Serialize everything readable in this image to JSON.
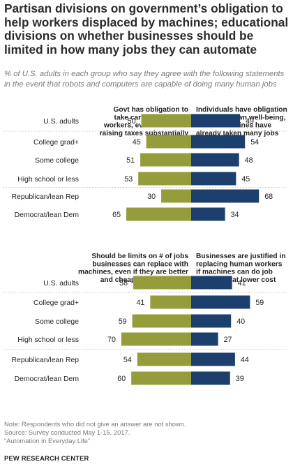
{
  "title": "Partisan divisions on government’s obligation to help workers displaced by machines; educational divisions on whether businesses should be limited in how many jobs they can automate",
  "subtitle": "% of U.S. adults in each group who say they agree with the following statements in the event that robots and computers are capable of doing many human jobs",
  "colors": {
    "left": "#949c3b",
    "right": "#1d3f6e",
    "divider": "#d0d0d0"
  },
  "chart_data": [
    {
      "type": "bar",
      "categories": [
        "U.S. adults",
        "College grad+",
        "Some college",
        "High school or less",
        "Republican/lean Rep",
        "Democrat/lean Dem"
      ],
      "headers": {
        "left": [
          "Govt has obligation to",
          "take care of displaced",
          "workers, even if it means",
          "raising taxes substantially"
        ],
        "right": [
          "Individuals have obligation",
          "to care for own well-being,",
          "even if machines have",
          "already taken many jobs"
        ]
      },
      "series": [
        {
          "name": "Govt has obligation to take care of displaced workers, even if it means raising taxes substantially",
          "values": [
            50,
            45,
            51,
            53,
            30,
            65
          ]
        },
        {
          "name": "Individuals have obligation to care for own well-being, even if machines have already taken many jobs",
          "values": [
            49,
            54,
            48,
            45,
            68,
            34
          ]
        }
      ]
    },
    {
      "type": "bar",
      "categories": [
        "U.S. adults",
        "College grad+",
        "Some college",
        "High school or less",
        "Republican/lean Rep",
        "Democrat/lean Dem"
      ],
      "headers": {
        "left": [
          "Should be limits on # of jobs",
          "businesses can replace with",
          "machines, even if they are better",
          "and cheaper than humans"
        ],
        "right": [
          "Businesses are justified in",
          "replacing human workers",
          "if machines can do job",
          "better and at lower cost"
        ]
      },
      "series": [
        {
          "name": "Should be limits on # of jobs businesses can replace with machines, even if they are better and cheaper than humans",
          "values": [
            58,
            41,
            59,
            70,
            54,
            60
          ]
        },
        {
          "name": "Businesses are justified in replacing human workers if machines can do job better and at lower cost",
          "values": [
            41,
            59,
            40,
            27,
            44,
            39
          ]
        }
      ]
    }
  ],
  "notes": [
    "Note: Respondents who did not give an answer are not shown.",
    "Source: Survey conducted May 1-15, 2017.",
    "“Automation in Everyday Life”"
  ],
  "brand": "PEW RESEARCH CENTER"
}
